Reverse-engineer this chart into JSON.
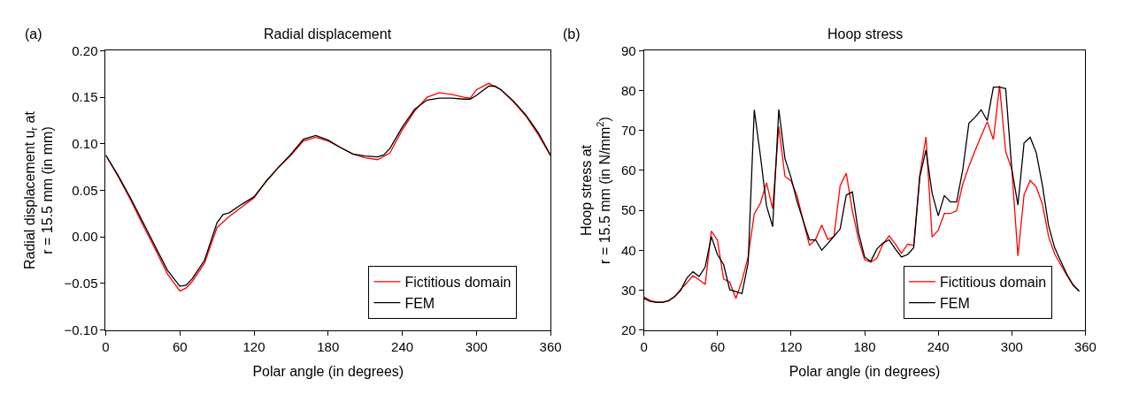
{
  "chart_data": [
    {
      "type": "line",
      "title": "Radial displacement",
      "annotations": [
        "(a)"
      ],
      "xlabel": "Polar angle (in degrees)",
      "ylabel": "Radial displacement u$_{r}$ at\nr = 15.5 mm (in mm)",
      "xlim": [
        0,
        360
      ],
      "xticks": [
        0,
        60,
        120,
        180,
        240,
        300,
        360
      ],
      "ylim": [
        -0.1,
        0.2
      ],
      "yticks": [
        {
          "value": -0.1,
          "label": "−0.10"
        },
        {
          "value": -0.05,
          "label": "−0.05"
        },
        {
          "value": 0,
          "label": "0.00"
        },
        {
          "value": 0.05,
          "label": "0.05"
        },
        {
          "value": 0.1,
          "label": "0.10"
        },
        {
          "value": 0.15,
          "label": "0.15"
        },
        {
          "value": 0.2,
          "label": "0.20"
        }
      ],
      "legend": "bottom right",
      "marker": "none",
      "line_style": "solid",
      "series": [
        {
          "name": "Fictitious domain",
          "color": "#ff0000",
          "x": [
            0,
            10,
            20,
            30,
            40,
            50,
            60,
            65,
            70,
            80,
            90,
            100,
            110,
            120,
            130,
            140,
            150,
            160,
            170,
            180,
            190,
            200,
            210,
            220,
            230,
            240,
            250,
            260,
            270,
            280,
            290,
            295,
            300,
            310,
            320,
            330,
            340,
            350,
            360
          ],
          "values": [
            0.088,
            0.065,
            0.04,
            0.013,
            -0.013,
            -0.04,
            -0.058,
            -0.055,
            -0.048,
            -0.028,
            0.01,
            0.022,
            0.032,
            0.042,
            0.06,
            0.075,
            0.088,
            0.103,
            0.107,
            0.103,
            0.096,
            0.089,
            0.085,
            0.083,
            0.09,
            0.115,
            0.135,
            0.15,
            0.155,
            0.153,
            0.15,
            0.149,
            0.158,
            0.165,
            0.158,
            0.145,
            0.13,
            0.11,
            0.087
          ]
        },
        {
          "name": "FEM",
          "color": "#000000",
          "x": [
            0,
            10,
            20,
            30,
            40,
            50,
            60,
            65,
            70,
            80,
            90,
            95,
            100,
            110,
            120,
            130,
            140,
            150,
            160,
            170,
            180,
            190,
            200,
            210,
            220,
            225,
            230,
            240,
            250,
            260,
            270,
            280,
            290,
            295,
            300,
            310,
            315,
            320,
            330,
            340,
            350,
            360
          ],
          "values": [
            0.088,
            0.066,
            0.042,
            0.016,
            -0.01,
            -0.036,
            -0.053,
            -0.052,
            -0.045,
            -0.025,
            0.015,
            0.024,
            0.026,
            0.035,
            0.043,
            0.06,
            0.075,
            0.089,
            0.105,
            0.109,
            0.104,
            0.096,
            0.089,
            0.087,
            0.086,
            0.088,
            0.095,
            0.118,
            0.137,
            0.147,
            0.149,
            0.149,
            0.148,
            0.148,
            0.152,
            0.162,
            0.162,
            0.158,
            0.146,
            0.131,
            0.112,
            0.088
          ]
        }
      ]
    },
    {
      "type": "line",
      "title": "Hoop stress",
      "annotations": [
        "(b)"
      ],
      "xlabel": "Polar angle (in degrees)",
      "ylabel": "Hoop stress at\nr = 15.5 mm (in N/mm$^{2}$)",
      "xlim": [
        0,
        360
      ],
      "xticks": [
        0,
        60,
        120,
        180,
        240,
        300,
        360
      ],
      "ylim": [
        20,
        90
      ],
      "yticks": [
        20,
        30,
        40,
        50,
        60,
        70,
        80,
        90
      ],
      "legend": "bottom right",
      "marker": "none",
      "line_style": "solid",
      "x": [
        0,
        5,
        10,
        15,
        20,
        25,
        30,
        35,
        40,
        45,
        50,
        55,
        60,
        65,
        70,
        75,
        80,
        85,
        90,
        95,
        100,
        105,
        110,
        115,
        120,
        125,
        130,
        135,
        140,
        145,
        150,
        155,
        160,
        165,
        170,
        175,
        180,
        185,
        190,
        195,
        200,
        205,
        210,
        215,
        220,
        225,
        230,
        235,
        240,
        245,
        250,
        255,
        260,
        265,
        270,
        275,
        280,
        285,
        290,
        295,
        300,
        305,
        310,
        315,
        320,
        325,
        330,
        335,
        340,
        345,
        350,
        355
      ],
      "series": [
        {
          "name": "Fictitious domain",
          "color": "#ff0000",
          "values": [
            28.3,
            27.4,
            27.0,
            27.0,
            27.3,
            28.4,
            30.2,
            31.8,
            33.6,
            32.6,
            31.4,
            44.8,
            42.5,
            32.8,
            32.0,
            27.9,
            32.4,
            38.3,
            49.1,
            51.8,
            56.9,
            50.4,
            71.0,
            58.5,
            57.4,
            53.5,
            47.3,
            41.2,
            42.7,
            46.3,
            42.7,
            43.4,
            56.2,
            59.3,
            49.9,
            42.7,
            37.6,
            37.0,
            38.0,
            41.6,
            43.6,
            41.6,
            39.2,
            41.5,
            41.2,
            58.9,
            68.4,
            43.3,
            45.0,
            49.2,
            49.2,
            49.9,
            56.5,
            61.0,
            64.9,
            68.6,
            72.2,
            67.7,
            81.2,
            64.7,
            60.3,
            38.6,
            53.9,
            57.5,
            55.8,
            51.5,
            43.4,
            39.0,
            36.3,
            33.6,
            31.2,
            29.7
          ]
        },
        {
          "name": "FEM",
          "color": "#000000",
          "values": [
            27.9,
            27.2,
            26.9,
            26.9,
            27.3,
            28.3,
            29.9,
            33.0,
            34.6,
            33.4,
            35.8,
            43.4,
            38.9,
            36.4,
            30.1,
            29.6,
            29.1,
            36.8,
            75.2,
            63.7,
            51.1,
            45.9,
            75.3,
            63.0,
            58.2,
            52.1,
            47.3,
            42.6,
            42.6,
            40.0,
            41.7,
            43.5,
            45.3,
            53.8,
            54.6,
            44.4,
            38.3,
            37.2,
            40.3,
            41.8,
            42.6,
            40.3,
            38.3,
            38.9,
            40.6,
            58.4,
            65.1,
            54.3,
            48.6,
            53.7,
            52.1,
            52.1,
            60.1,
            71.8,
            73.3,
            75.2,
            72.5,
            80.9,
            80.9,
            80.5,
            60.3,
            51.3,
            66.9,
            68.3,
            64.4,
            56.2,
            46.1,
            40.6,
            37.2,
            33.9,
            31.3,
            29.7
          ]
        }
      ]
    }
  ]
}
